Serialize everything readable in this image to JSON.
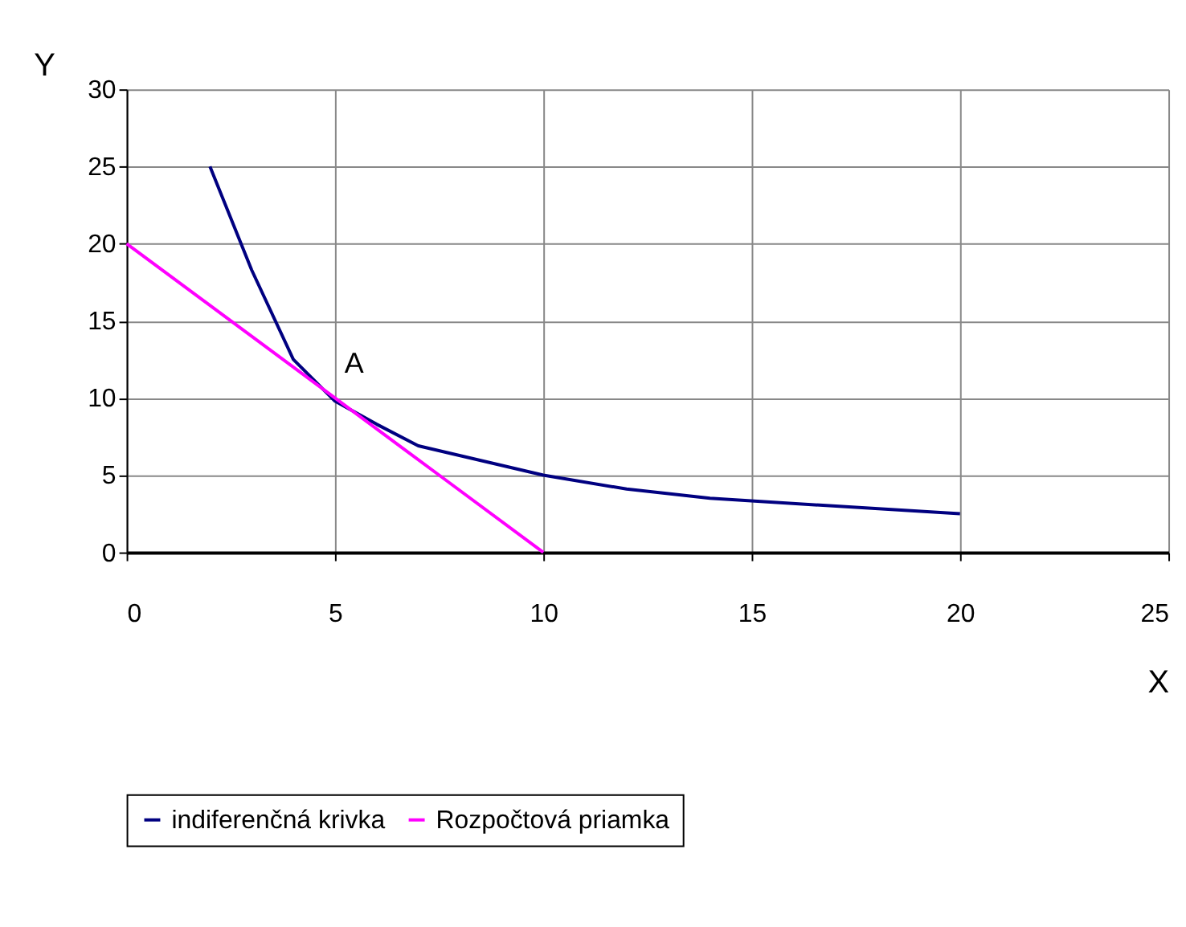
{
  "chart_data": {
    "type": "line",
    "xlabel": "X",
    "ylabel": "Y",
    "xlim": [
      0,
      25
    ],
    "xticks": [
      0,
      5,
      10,
      15,
      20,
      25
    ],
    "ylim": [
      0,
      30
    ],
    "yticks": [
      0,
      5,
      10,
      15,
      20,
      25,
      30
    ],
    "grid": true,
    "legend": "bottom",
    "line_style": "solid",
    "marker": "none",
    "annotations": [
      {
        "text": "A",
        "x": 5,
        "y": 10
      }
    ],
    "series": [
      {
        "name": "indiferenčná krivka",
        "color": "#000080",
        "x": [
          2,
          3,
          4,
          5,
          6,
          7,
          10,
          12,
          14,
          20
        ],
        "values": [
          25,
          18.3,
          12.5,
          9.8,
          8.3,
          6.9,
          5,
          4.1,
          3.5,
          2.5
        ]
      },
      {
        "name": "Rozpočtová priamka",
        "color": "#ff00ff",
        "x": [
          0,
          2.5,
          5,
          7.5,
          10
        ],
        "values": [
          20,
          15,
          10,
          5,
          0
        ]
      }
    ]
  }
}
